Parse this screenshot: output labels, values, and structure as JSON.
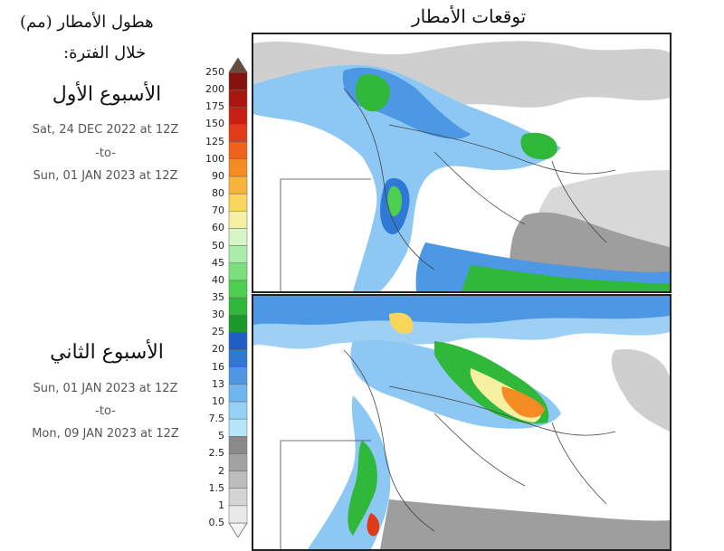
{
  "map_title": "توقعات الأمطار",
  "legend": {
    "title": "هطول الأمطار (مم)",
    "subtitle": "خلال الفترة:",
    "levels": [
      "0.5",
      "1",
      "1.5",
      "2",
      "2.5",
      "5",
      "7.5",
      "10",
      "13",
      "16",
      "20",
      "25",
      "30",
      "35",
      "40",
      "45",
      "50",
      "60",
      "70",
      "80",
      "90",
      "100",
      "125",
      "150",
      "175",
      "200",
      "250"
    ],
    "colors": [
      "#e9e9e9",
      "#d4d4d4",
      "#bdbdbd",
      "#a3a3a3",
      "#8a8a8a",
      "#b7e6fb",
      "#96d1f7",
      "#6fb6f0",
      "#4d98e4",
      "#2f78d6",
      "#1f5ec7",
      "#1a9a2a",
      "#2fb83a",
      "#4fcf4f",
      "#7be07b",
      "#a8eea8",
      "#d6f6c6",
      "#f5f0a0",
      "#f9d65a",
      "#f7b33a",
      "#f58c23",
      "#f0621b",
      "#e13a16",
      "#c81f13",
      "#a81610",
      "#86120e",
      "#6a4a3a"
    ]
  },
  "week1": {
    "title": "الأسبوع الأول",
    "from": "Sat, 24 DEC 2022 at 12Z",
    "to_word": "-to-",
    "until": "Sun, 01 JAN 2023 at 12Z"
  },
  "week2": {
    "title": "الأسبوع الثاني",
    "from": "Sun, 01 JAN 2023 at 12Z",
    "to_word": "-to-",
    "until": "Mon, 09 JAN 2023 at 12Z"
  }
}
